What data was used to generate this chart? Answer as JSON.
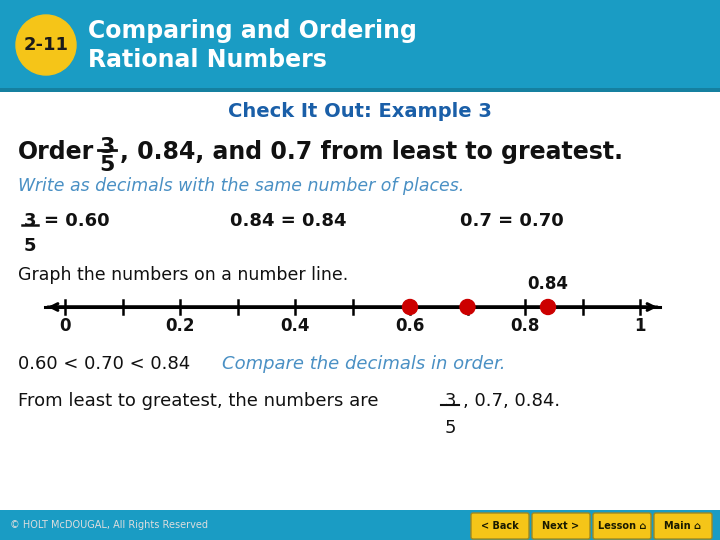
{
  "header_bg_color": "#1a9cc4",
  "header_text_color": "#ffffff",
  "badge_color": "#f5c518",
  "badge_text": "2-11",
  "title_line1": "Comparing and Ordering",
  "title_line2": "Rational Numbers",
  "check_it_out": "Check It Out: Example 3",
  "check_color": "#1a5fa8",
  "italic_blue_text": "Write as decimals with the same number of places.",
  "italic_blue_color": "#4a90c4",
  "graph_label": "Graph the numbers on a number line.",
  "number_line_points": [
    0.6,
    0.7,
    0.84
  ],
  "number_line_label_point": 0.84,
  "number_line_label": "0.84",
  "number_line_ticks": [
    0.0,
    0.1,
    0.2,
    0.3,
    0.4,
    0.5,
    0.6,
    0.7,
    0.8,
    0.9,
    1.0
  ],
  "number_line_major": [
    0.0,
    0.2,
    0.4,
    0.6,
    0.8,
    1.0
  ],
  "number_line_major_labels": [
    "0",
    "0.2",
    "0.4",
    "0.6",
    "0.8",
    "1"
  ],
  "dot_color": "#cc0000",
  "compare_black": "0.60 < 0.70 < 0.84",
  "compare_blue": "Compare the decimals in order.",
  "compare_blue_color": "#4a90c4",
  "final_black": "From least to greatest, the numbers are",
  "footer_bg_color": "#1a9cc4",
  "footer_text": "© HOLT McDOUGAL, All Rights Reserved",
  "bg_color": "#ffffff",
  "text_color": "#111111"
}
